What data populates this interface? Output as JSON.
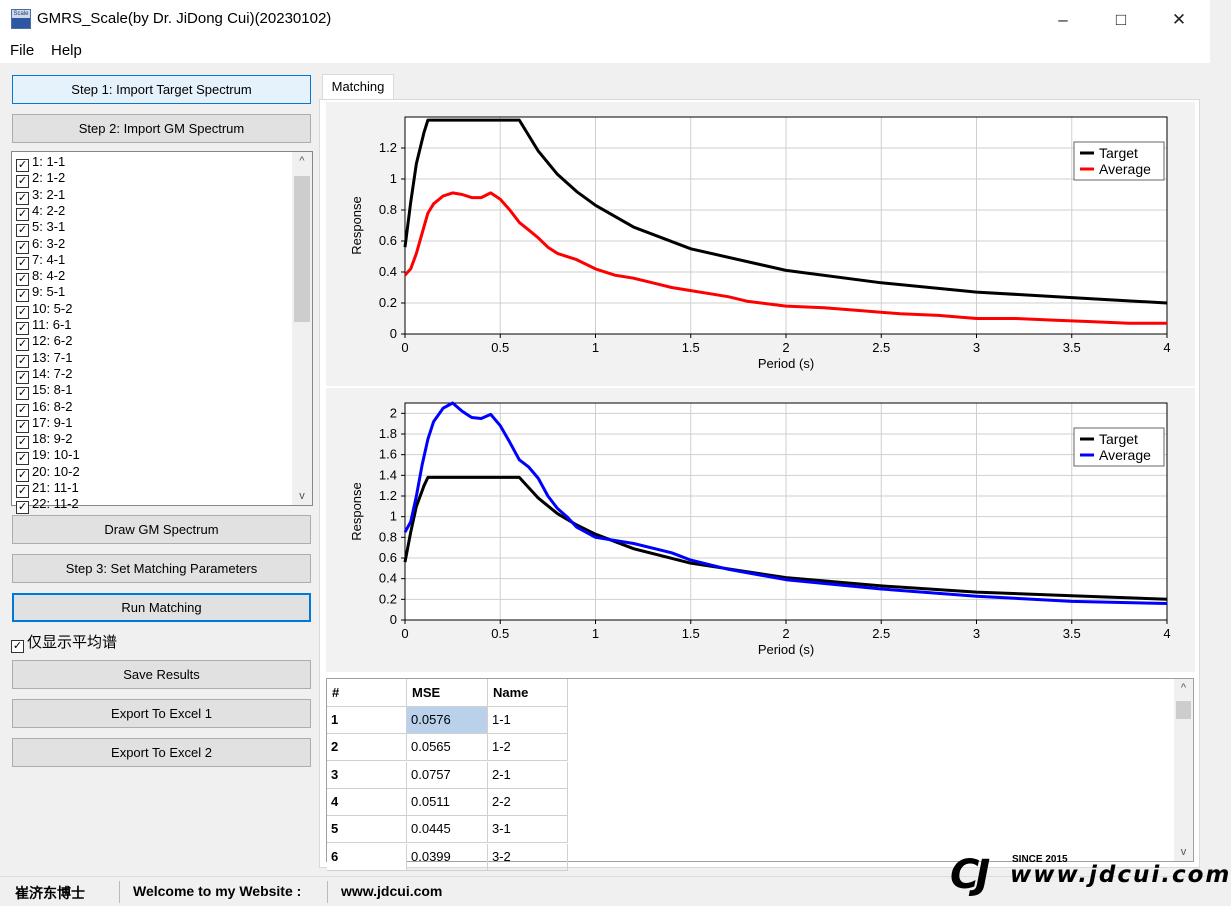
{
  "window": {
    "title": "GMRS_Scale(by Dr. JiDong Cui)(20230102)",
    "icon_text": "Scale"
  },
  "menu": [
    {
      "label": "File"
    },
    {
      "label": "Help"
    }
  ],
  "buttons": {
    "import_target": "Step 1: Import Target Spectrum",
    "import_gm": "Step 2: Import GM Spectrum",
    "draw_gm": "Draw GM Spectrum",
    "set_params": "Step 3: Set Matching Parameters",
    "run_matching": "Run Matching",
    "save_results": "Save Results",
    "export_excel1": "Export To Excel 1",
    "export_excel2": "Export To Excel 2"
  },
  "gm_list": [
    "1: 1-1",
    "2: 1-2",
    "3: 2-1",
    "4: 2-2",
    "5: 3-1",
    "6: 3-2",
    "7: 4-1",
    "8: 4-2",
    "9: 5-1",
    "10: 5-2",
    "11: 6-1",
    "12: 6-2",
    "13: 7-1",
    "14: 7-2",
    "15: 8-1",
    "16: 8-2",
    "17: 9-1",
    "18: 9-2",
    "19: 10-1",
    "20: 10-2",
    "21: 11-1",
    "22: 11-2"
  ],
  "avg_only_label": "仅显示平均谱",
  "tab_label": "Matching",
  "chart_data": [
    {
      "type": "line",
      "xlabel": "Period (s)",
      "ylabel": "Response",
      "xlim": [
        0,
        4
      ],
      "ylim": [
        0,
        1.4
      ],
      "xticks": [
        "0",
        "0.5",
        "1",
        "1.5",
        "2",
        "2.5",
        "3",
        "3.5",
        "4"
      ],
      "yticks": [
        "0",
        "0.2",
        "0.4",
        "0.6",
        "0.8",
        "1",
        "1.2"
      ],
      "grid": true,
      "legend_position": "top-right",
      "series": [
        {
          "name": "Target",
          "color": "#000000",
          "x": [
            0,
            0.03,
            0.06,
            0.1,
            0.12,
            0.3,
            0.5,
            0.6,
            0.7,
            0.8,
            0.9,
            1.0,
            1.2,
            1.5,
            2.0,
            2.5,
            3.0,
            3.5,
            4.0
          ],
          "y": [
            0.56,
            0.85,
            1.1,
            1.3,
            1.38,
            1.38,
            1.38,
            1.38,
            1.18,
            1.03,
            0.92,
            0.83,
            0.69,
            0.55,
            0.41,
            0.33,
            0.27,
            0.235,
            0.2
          ]
        },
        {
          "name": "Average",
          "color": "#ff0000",
          "x": [
            0,
            0.03,
            0.06,
            0.09,
            0.12,
            0.15,
            0.2,
            0.25,
            0.3,
            0.35,
            0.4,
            0.45,
            0.5,
            0.55,
            0.6,
            0.65,
            0.7,
            0.75,
            0.8,
            0.9,
            1.0,
            1.1,
            1.2,
            1.3,
            1.4,
            1.5,
            1.6,
            1.7,
            1.8,
            2.0,
            2.2,
            2.4,
            2.6,
            2.8,
            3.0,
            3.2,
            3.4,
            3.6,
            3.8,
            4.0
          ],
          "y": [
            0.38,
            0.42,
            0.52,
            0.65,
            0.78,
            0.84,
            0.89,
            0.91,
            0.9,
            0.88,
            0.88,
            0.91,
            0.87,
            0.8,
            0.72,
            0.67,
            0.62,
            0.56,
            0.52,
            0.48,
            0.42,
            0.38,
            0.36,
            0.33,
            0.3,
            0.28,
            0.26,
            0.24,
            0.21,
            0.18,
            0.17,
            0.15,
            0.13,
            0.12,
            0.1,
            0.1,
            0.09,
            0.08,
            0.07,
            0.07
          ]
        }
      ]
    },
    {
      "type": "line",
      "xlabel": "Period (s)",
      "ylabel": "Response",
      "xlim": [
        0,
        4
      ],
      "ylim": [
        0,
        2.1
      ],
      "xticks": [
        "0",
        "0.5",
        "1",
        "1.5",
        "2",
        "2.5",
        "3",
        "3.5",
        "4"
      ],
      "yticks": [
        "0",
        "0.2",
        "0.4",
        "0.6",
        "0.8",
        "1",
        "1.2",
        "1.4",
        "1.6",
        "1.8",
        "2"
      ],
      "grid": true,
      "legend_position": "top-right",
      "series": [
        {
          "name": "Target",
          "color": "#000000",
          "x": [
            0,
            0.03,
            0.06,
            0.1,
            0.12,
            0.3,
            0.5,
            0.6,
            0.7,
            0.8,
            0.9,
            1.0,
            1.2,
            1.5,
            2.0,
            2.5,
            3.0,
            3.5,
            4.0
          ],
          "y": [
            0.56,
            0.85,
            1.1,
            1.3,
            1.38,
            1.38,
            1.38,
            1.38,
            1.18,
            1.03,
            0.92,
            0.83,
            0.69,
            0.55,
            0.41,
            0.33,
            0.27,
            0.235,
            0.2
          ]
        },
        {
          "name": "Average",
          "color": "#0000ff",
          "x": [
            0,
            0.03,
            0.06,
            0.09,
            0.12,
            0.15,
            0.2,
            0.25,
            0.3,
            0.35,
            0.4,
            0.45,
            0.5,
            0.55,
            0.6,
            0.65,
            0.7,
            0.75,
            0.8,
            0.85,
            0.9,
            1.0,
            1.2,
            1.4,
            1.5,
            1.7,
            2.0,
            2.5,
            3.0,
            3.5,
            4.0
          ],
          "y": [
            0.85,
            0.95,
            1.2,
            1.5,
            1.75,
            1.92,
            2.05,
            2.1,
            2.02,
            1.96,
            1.95,
            1.99,
            1.88,
            1.72,
            1.55,
            1.48,
            1.37,
            1.2,
            1.08,
            1.0,
            0.9,
            0.8,
            0.74,
            0.65,
            0.58,
            0.49,
            0.39,
            0.3,
            0.23,
            0.18,
            0.16
          ]
        }
      ]
    }
  ],
  "results_table": {
    "headers": [
      "#",
      "MSE",
      "Name"
    ],
    "rows": [
      {
        "index": "1",
        "mse": "0.0576",
        "name": "1-1"
      },
      {
        "index": "2",
        "mse": "0.0565",
        "name": "1-2"
      },
      {
        "index": "3",
        "mse": "0.0757",
        "name": "2-1"
      },
      {
        "index": "4",
        "mse": "0.0511",
        "name": "2-2"
      },
      {
        "index": "5",
        "mse": "0.0445",
        "name": "3-1"
      },
      {
        "index": "6",
        "mse": "0.0399",
        "name": "3-2"
      }
    ]
  },
  "status_bar": {
    "author": "崔济东博士",
    "welcome": "Welcome to my Website :",
    "website": "www.jdcui.com"
  },
  "watermark": {
    "logo": "CJ",
    "since": "SINCE 2015",
    "url": "www.jdcui.com"
  },
  "icons": {
    "check": "✓",
    "scroll_up": "^",
    "scroll_down": "v"
  }
}
